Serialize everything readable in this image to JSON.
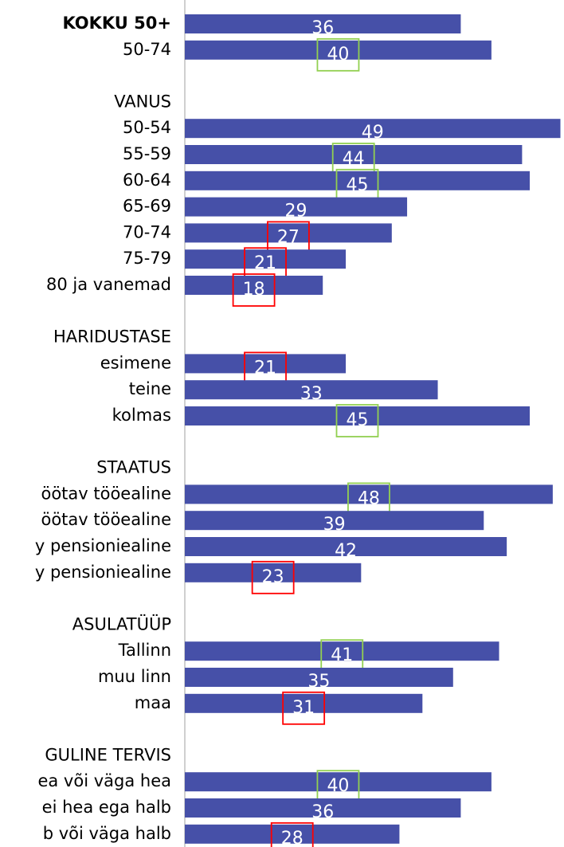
{
  "chart_data": {
    "type": "hbar",
    "categories": [
      "KOKKU 50+",
      "50-74",
      null,
      "VANUS",
      "50-54",
      "55-59",
      "60-64",
      "65-69",
      "70-74",
      "75-79",
      "80 ja vanemad",
      null,
      "HARIDUSTASE",
      "esimene",
      "teine",
      "kolmas",
      null,
      "STAATUS",
      "öötav tööealine",
      "öötav tööealine",
      "y pensioniealine",
      "y pensioniealine",
      null,
      "ASULATÜÜP",
      "Tallinn",
      "muu linn",
      "maa",
      null,
      "GULINE TERVIS",
      "ea või väga hea",
      "ei hea ega halb",
      "b või väga halb"
    ],
    "values": [
      36,
      40,
      null,
      null,
      49,
      44,
      45,
      29,
      27,
      21,
      18,
      null,
      null,
      21,
      33,
      45,
      null,
      null,
      48,
      39,
      42,
      23,
      null,
      null,
      41,
      35,
      31,
      null,
      null,
      40,
      36,
      28
    ],
    "box_colors": [
      null,
      "#92d050",
      null,
      null,
      null,
      "#92d050",
      "#92d050",
      null,
      "#ff0000",
      "#ff0000",
      "#ff0000",
      null,
      null,
      "#ff0000",
      null,
      "#92d050",
      null,
      null,
      "#92d050",
      null,
      null,
      "#ff0000",
      null,
      null,
      "#92d050",
      null,
      "#ff0000",
      null,
      null,
      "#92d050",
      null,
      "#ff0000"
    ],
    "color": "#4650a8",
    "xlim": [
      0,
      49
    ]
  }
}
